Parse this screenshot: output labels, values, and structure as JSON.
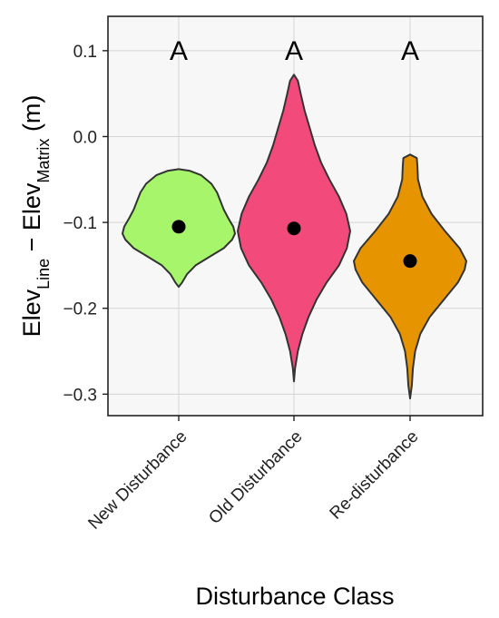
{
  "chart_data": {
    "type": "violin",
    "title": "",
    "xlabel": "Disturbance Class",
    "ylabel": {
      "parts": [
        {
          "text": "Elev",
          "sub": false
        },
        {
          "text": "Line",
          "sub": true
        },
        {
          "text": " − Elev",
          "sub": false
        },
        {
          "text": "Matrix",
          "sub": true
        },
        {
          "text": " (m)",
          "sub": false
        }
      ]
    },
    "ylim": [
      -0.325,
      0.14
    ],
    "yticks": [
      {
        "value": 0.1,
        "label": "0.1"
      },
      {
        "value": 0.0,
        "label": "0.0"
      },
      {
        "value": -0.1,
        "label": "−0.1"
      },
      {
        "value": -0.2,
        "label": "−0.2"
      },
      {
        "value": -0.3,
        "label": "−0.3"
      }
    ],
    "grid": true,
    "legend": "none",
    "categories": [
      "New Disturbance",
      "Old Disturbance",
      "Re-disturbance"
    ],
    "series": [
      {
        "category": "New Disturbance",
        "color": "#a6f56a",
        "mean": -0.105,
        "letter": "A",
        "profile": [
          [
            -0.175,
            0.0
          ],
          [
            -0.17,
            0.06
          ],
          [
            -0.16,
            0.15
          ],
          [
            -0.15,
            0.3
          ],
          [
            -0.14,
            0.55
          ],
          [
            -0.13,
            0.8
          ],
          [
            -0.12,
            0.95
          ],
          [
            -0.113,
            1.0
          ],
          [
            -0.105,
            0.97
          ],
          [
            -0.095,
            0.88
          ],
          [
            -0.085,
            0.8
          ],
          [
            -0.075,
            0.74
          ],
          [
            -0.065,
            0.68
          ],
          [
            -0.055,
            0.58
          ],
          [
            -0.045,
            0.4
          ],
          [
            -0.04,
            0.2
          ],
          [
            -0.038,
            0.0
          ]
        ]
      },
      {
        "category": "Old Disturbance",
        "color": "#f24b7b",
        "mean": -0.107,
        "letter": "A",
        "profile": [
          [
            -0.285,
            0.0
          ],
          [
            -0.27,
            0.02
          ],
          [
            -0.25,
            0.07
          ],
          [
            -0.23,
            0.15
          ],
          [
            -0.21,
            0.26
          ],
          [
            -0.19,
            0.4
          ],
          [
            -0.17,
            0.58
          ],
          [
            -0.15,
            0.8
          ],
          [
            -0.13,
            0.94
          ],
          [
            -0.11,
            1.0
          ],
          [
            -0.09,
            0.93
          ],
          [
            -0.07,
            0.8
          ],
          [
            -0.05,
            0.63
          ],
          [
            -0.03,
            0.48
          ],
          [
            -0.01,
            0.37
          ],
          [
            0.01,
            0.28
          ],
          [
            0.03,
            0.19
          ],
          [
            0.05,
            0.12
          ],
          [
            0.065,
            0.07
          ],
          [
            0.072,
            0.0
          ]
        ]
      },
      {
        "category": "Re-disturbance",
        "color": "#e69500",
        "mean": -0.145,
        "letter": "A",
        "profile": [
          [
            -0.305,
            0.0
          ],
          [
            -0.29,
            0.03
          ],
          [
            -0.27,
            0.05
          ],
          [
            -0.25,
            0.09
          ],
          [
            -0.23,
            0.18
          ],
          [
            -0.21,
            0.35
          ],
          [
            -0.19,
            0.6
          ],
          [
            -0.17,
            0.85
          ],
          [
            -0.155,
            0.97
          ],
          [
            -0.145,
            1.0
          ],
          [
            -0.13,
            0.88
          ],
          [
            -0.11,
            0.62
          ],
          [
            -0.09,
            0.38
          ],
          [
            -0.07,
            0.22
          ],
          [
            -0.05,
            0.14
          ],
          [
            -0.035,
            0.13
          ],
          [
            -0.025,
            0.12
          ],
          [
            -0.021,
            0.0
          ]
        ]
      }
    ]
  }
}
